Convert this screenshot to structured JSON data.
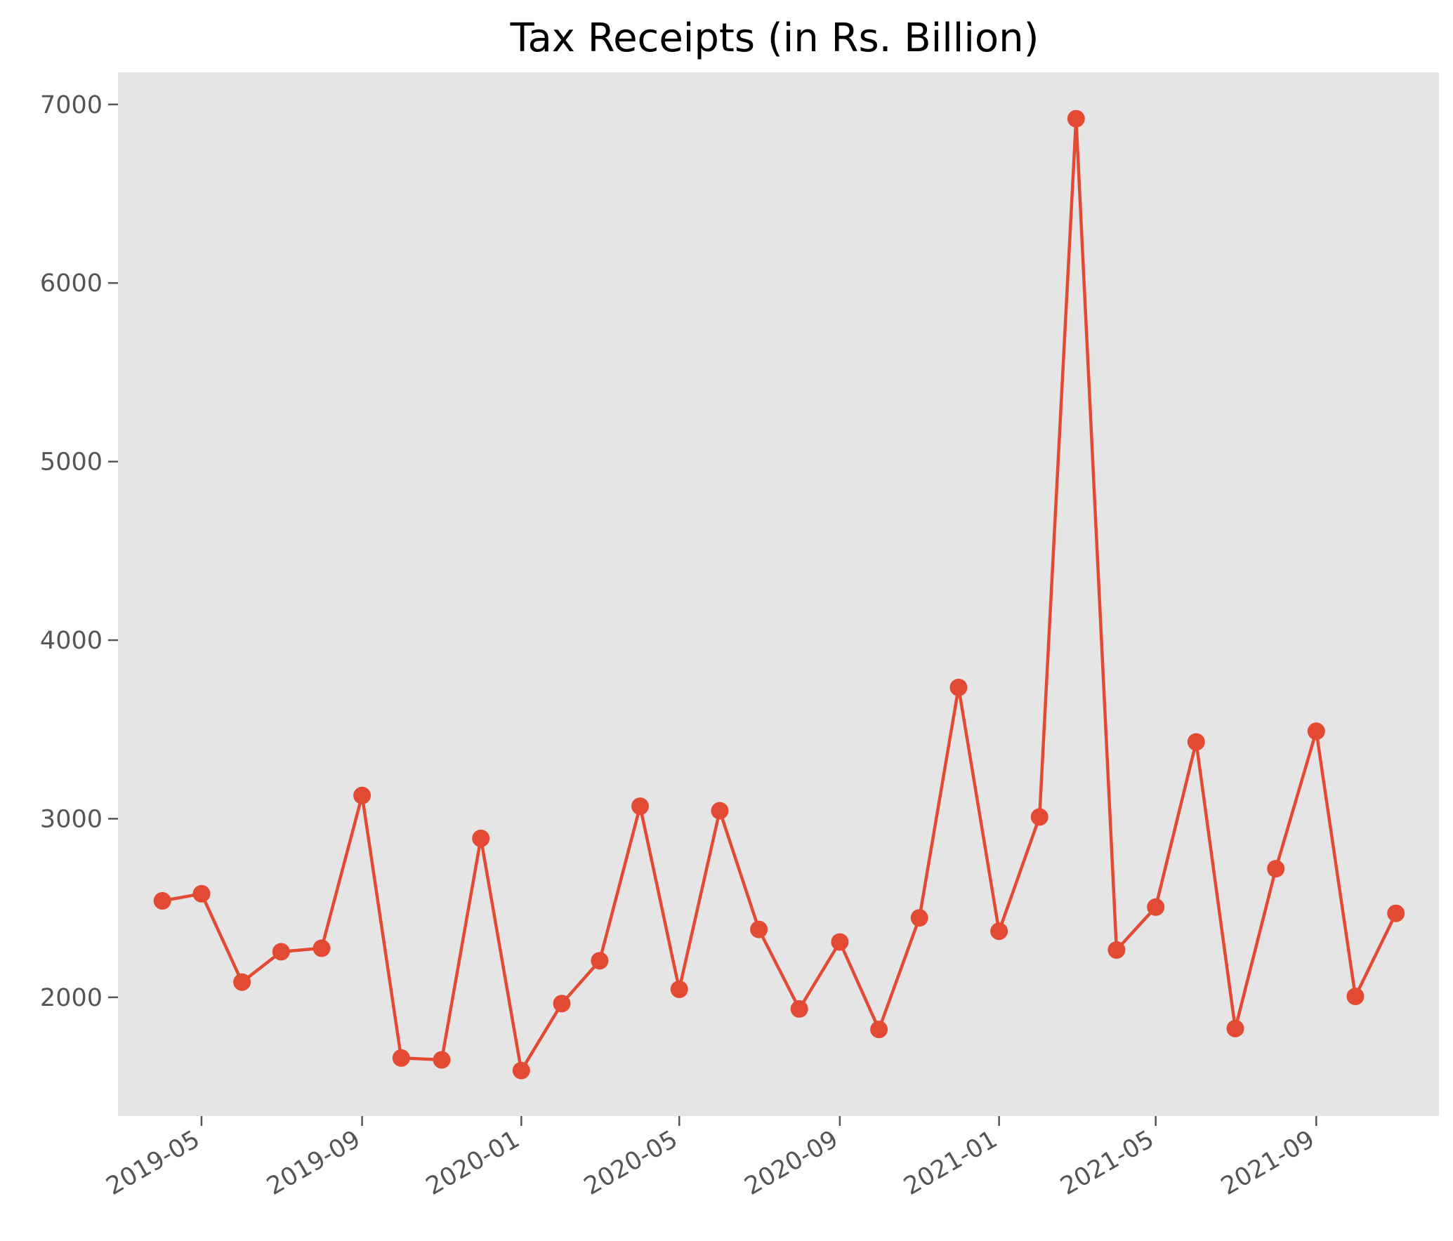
{
  "chart_data": {
    "type": "line",
    "title": "Tax Receipts (in Rs. Billion)",
    "xlabel": "",
    "ylabel": "",
    "x": [
      "2019-04",
      "2019-05",
      "2019-06",
      "2019-07",
      "2019-08",
      "2019-09",
      "2019-10",
      "2019-11",
      "2019-12",
      "2020-01",
      "2020-02",
      "2020-03",
      "2020-04",
      "2020-05",
      "2020-06",
      "2020-07",
      "2020-08",
      "2020-09",
      "2020-10",
      "2020-11",
      "2020-12",
      "2021-01",
      "2021-02",
      "2021-03",
      "2021-04",
      "2021-05",
      "2021-06",
      "2021-07",
      "2021-08",
      "2021-09",
      "2021-10",
      "2021-11"
    ],
    "series": [
      {
        "name": "",
        "values": [
          2540,
          2580,
          2085,
          2255,
          2275,
          3130,
          1660,
          1650,
          2890,
          1590,
          1965,
          2205,
          3070,
          2045,
          3045,
          2380,
          1935,
          2310,
          1820,
          2445,
          3735,
          2370,
          3010,
          6920,
          2265,
          2505,
          3430,
          1825,
          2720,
          3490,
          2005,
          2470
        ]
      }
    ],
    "x_ticks": [
      "2019-05",
      "2019-09",
      "2020-01",
      "2020-05",
      "2020-09",
      "2021-01",
      "2021-05",
      "2021-09"
    ],
    "y_ticks": [
      2000,
      3000,
      4000,
      5000,
      6000,
      7000
    ],
    "xlim": [
      "2019-02-26",
      "2021-12-04"
    ],
    "ylim": [
      1335,
      7180
    ],
    "grid": false,
    "legend": "none",
    "colors": {
      "line": "#E24A33",
      "plot_bg": "#E5E5E5",
      "tick_text": "#555555"
    }
  }
}
